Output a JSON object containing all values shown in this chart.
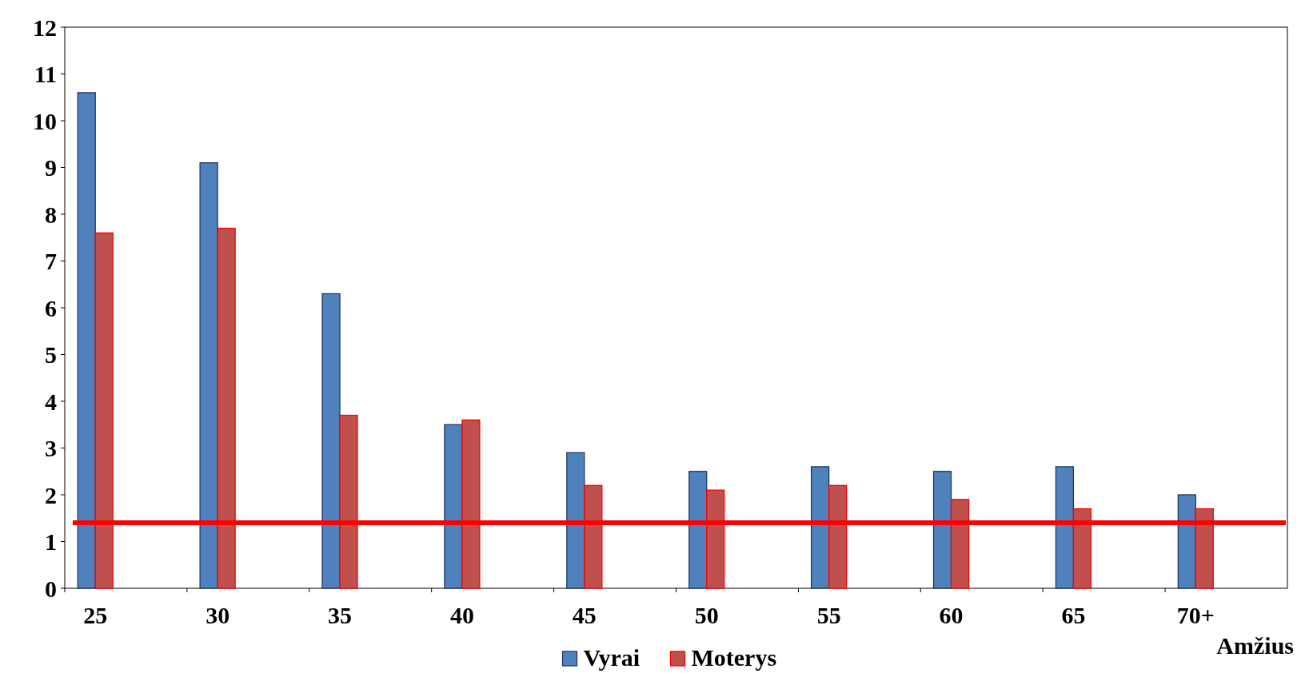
{
  "chart_data": {
    "type": "bar",
    "xlabel": "Amžius",
    "categories": [
      "25",
      "30",
      "35",
      "40",
      "45",
      "50",
      "55",
      "60",
      "65",
      "70+"
    ],
    "series": [
      {
        "name": "Vyrai",
        "color": "#4f81bd",
        "values": [
          10.6,
          9.1,
          6.3,
          3.5,
          2.9,
          2.5,
          2.6,
          2.5,
          2.6,
          2.0
        ]
      },
      {
        "name": "Moterys",
        "color": "#c0504d",
        "values": [
          7.6,
          7.7,
          3.7,
          3.6,
          2.2,
          2.1,
          2.2,
          1.9,
          1.7,
          1.7
        ]
      }
    ],
    "ylim": [
      0,
      12
    ],
    "yticks": [
      0,
      1,
      2,
      3,
      4,
      5,
      6,
      7,
      8,
      9,
      10,
      11,
      12
    ],
    "ref_lines": [
      {
        "axis": "y",
        "value": 1.4,
        "color": "#ff0000"
      }
    ],
    "legend": "bottom",
    "grid": false
  }
}
